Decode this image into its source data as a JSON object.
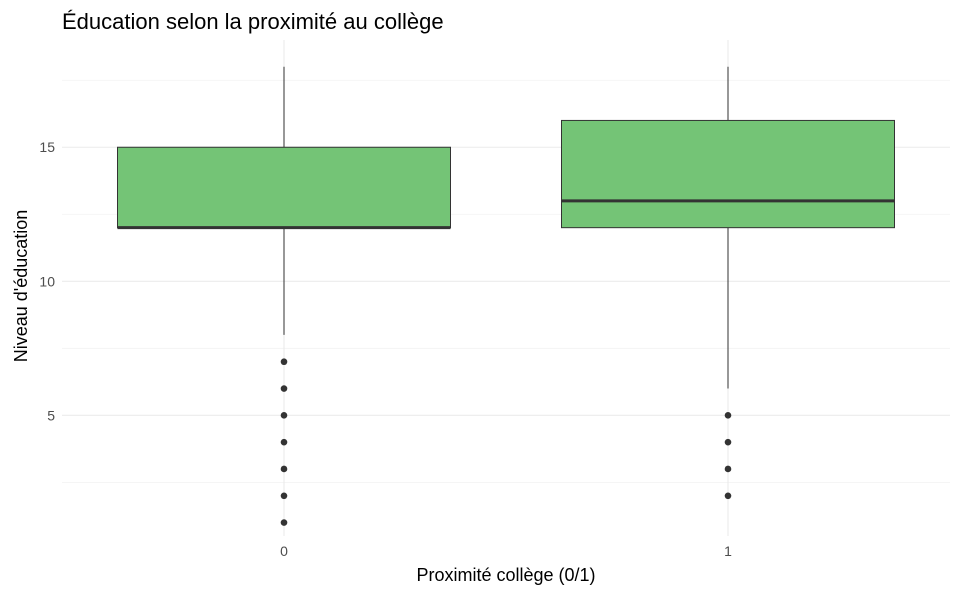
{
  "chart_data": {
    "type": "boxplot",
    "title": "Éducation selon la proximité au collège",
    "xlabel": "Proximité collège (0/1)",
    "ylabel": "Niveau d'éducation",
    "categories": [
      "0",
      "1"
    ],
    "ylim": [
      0.5,
      19
    ],
    "y_ticks": [
      5,
      10,
      15
    ],
    "grid": true,
    "fill_color": "#74C476",
    "line_color": "#333333",
    "boxes": [
      {
        "category": "0",
        "whisker_low": 8,
        "q1": 12,
        "median": 12,
        "q3": 15,
        "whisker_high": 18,
        "outliers": [
          1,
          2,
          3,
          4,
          5,
          6,
          7
        ]
      },
      {
        "category": "1",
        "whisker_low": 6,
        "q1": 12,
        "median": 13,
        "q3": 16,
        "whisker_high": 18,
        "outliers": [
          2,
          3,
          4,
          5
        ]
      }
    ]
  }
}
